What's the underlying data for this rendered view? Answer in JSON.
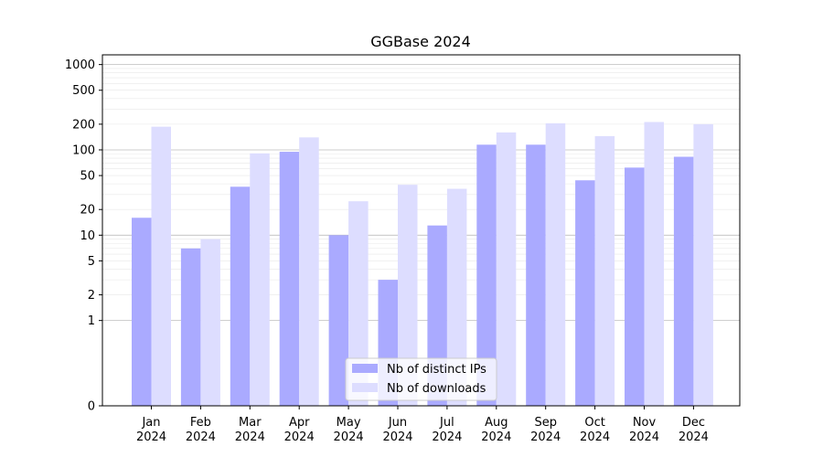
{
  "chart_data": {
    "type": "bar",
    "title": "GGBase 2024",
    "xlabel": "",
    "ylabel": "",
    "yscale": "symlog",
    "ylim": [
      0,
      1300
    ],
    "categories": [
      [
        "Jan",
        "2024"
      ],
      [
        "Feb",
        "2024"
      ],
      [
        "Mar",
        "2024"
      ],
      [
        "Apr",
        "2024"
      ],
      [
        "May",
        "2024"
      ],
      [
        "Jun",
        "2024"
      ],
      [
        "Jul",
        "2024"
      ],
      [
        "Aug",
        "2024"
      ],
      [
        "Sep",
        "2024"
      ],
      [
        "Oct",
        "2024"
      ],
      [
        "Nov",
        "2024"
      ],
      [
        "Dec",
        "2024"
      ]
    ],
    "yticks": [
      {
        "value": 0,
        "label": "0"
      },
      {
        "value": 1,
        "label": "1"
      },
      {
        "value": 2,
        "label": "2"
      },
      {
        "value": 5,
        "label": "5"
      },
      {
        "value": 10,
        "label": "10"
      },
      {
        "value": 20,
        "label": "20"
      },
      {
        "value": 50,
        "label": "50"
      },
      {
        "value": 100,
        "label": "100"
      },
      {
        "value": 200,
        "label": "200"
      },
      {
        "value": 500,
        "label": "500"
      },
      {
        "value": 1000,
        "label": "1000"
      }
    ],
    "grid": true,
    "legend": "bottom-center",
    "series": [
      {
        "name": "Nb of distinct IPs",
        "color": "#aaaaff",
        "values": [
          16,
          7,
          37,
          95,
          10,
          3,
          13,
          115,
          115,
          44,
          62,
          83
        ]
      },
      {
        "name": "Nb of downloads",
        "color": "#ddddff",
        "values": [
          187,
          9,
          91,
          140,
          25,
          39,
          35,
          160,
          205,
          145,
          212,
          200
        ]
      }
    ]
  }
}
